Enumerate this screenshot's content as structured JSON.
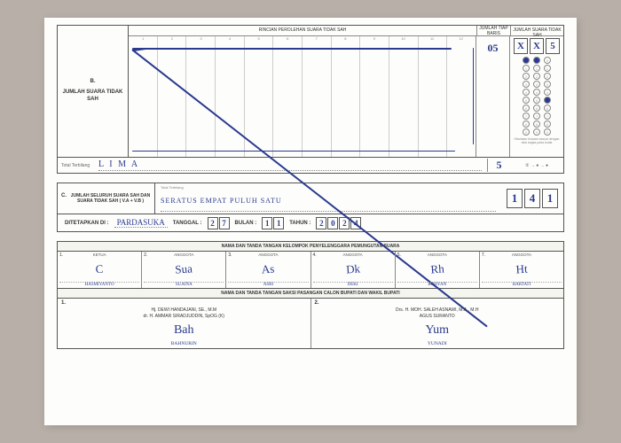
{
  "section_b": {
    "index": "B.",
    "label": "JUMLAH SUARA TIDAK SAH",
    "chart_title": "RINCIAN PEROLEHAN SUARA TIDAK SAH",
    "jtb_label": "JUMLAH TIAP BARIS",
    "jst_label": "JUMLAH SUARA TIDAK SAH",
    "col_count": 12,
    "tally_top": "05",
    "big_digits": [
      "X",
      "X",
      "5"
    ],
    "filled_bubbles": [
      [
        0
      ],
      [
        0
      ],
      [
        5
      ]
    ],
    "note": "Hitamkan bulatan sesuai dengan nilai angka pada kotak",
    "word_label": "Total Terbilang",
    "word_value": "L I M A",
    "word_num": "5",
    "arrow_text": "② → ● → ●"
  },
  "section_c": {
    "index": "C.",
    "label": "JUMLAH SELURUH SUARA SAH DAN SUARA TIDAK SAH ( V.A + V.B )",
    "tiny": "Total Terbilang",
    "written": "SERATUS  EMPAT  PULUH  SATU",
    "digits": [
      "1",
      "4",
      "1"
    ]
  },
  "date": {
    "set_label": "DITETAPKAN DI :",
    "place": "PARDASUKA",
    "tgl_label": "TANGGAL :",
    "tgl": [
      "2",
      "7"
    ],
    "bln_label": "BULAN :",
    "bln": [
      "1",
      "1"
    ],
    "thn_label": "TAHUN :",
    "thn": [
      "2",
      "0",
      "2",
      "4"
    ]
  },
  "signatures": {
    "header1": "NAMA DAN TANDA TANGAN KELOMPOK PENYELENGGARA PEMUNGUTAN SUARA",
    "members": [
      {
        "n": "1.",
        "role": "KETUA",
        "sig": "C",
        "name": "HASMIYANTO"
      },
      {
        "n": "2.",
        "role": "ANGGOTA",
        "sig": "Sua",
        "name": "SUAINA"
      },
      {
        "n": "3.",
        "role": "ANGGOTA",
        "sig": "As",
        "name": "ASRI"
      },
      {
        "n": "4.",
        "role": "ANGGOTA",
        "sig": "Dk",
        "name": "DEKI"
      },
      {
        "n": "5.",
        "role": "ANGGOTA",
        "sig": "Rh",
        "name": "ROHYAN"
      },
      {
        "n": "7.",
        "role": "ANGGOTA",
        "sig": "Ht",
        "name": "HARTATI"
      }
    ],
    "header2": "NAMA DAN TANDA TANGAN SAKSI PASANGAN CALON BUPATI DAN WAKIL BUPATI",
    "candidates": [
      {
        "n": "1.",
        "names": "Hj. DEWI HANDAJANI, SE., M.M\ndr. H. AMMAR SIRADJUDDIN, SpOG (K)",
        "sig": "Bah",
        "witness": "BAHNURIN"
      },
      {
        "n": "2.",
        "names": "Drs. H. MOH. SALEH ASNAWI, M.A., M.H\nAGUS SURANTO",
        "sig": "Yum",
        "witness": "YUNADI"
      }
    ]
  }
}
